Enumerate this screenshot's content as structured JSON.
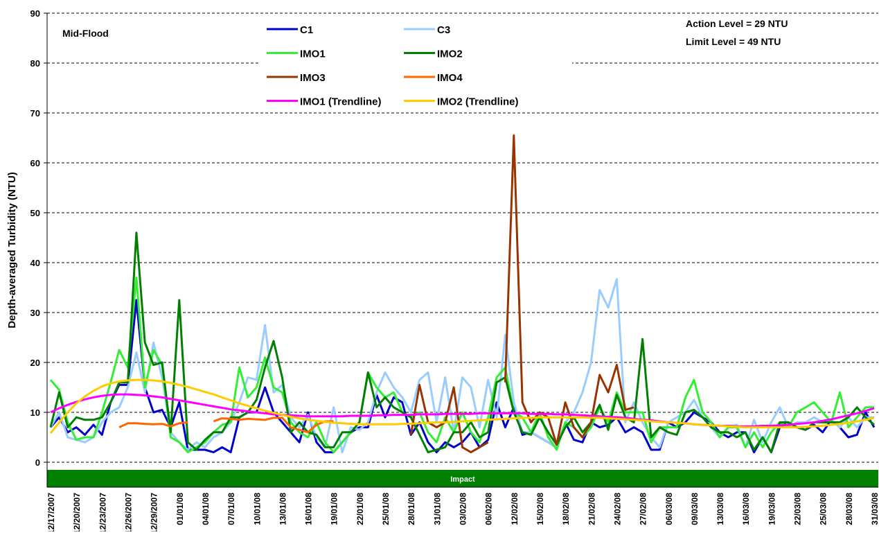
{
  "chart_data": {
    "type": "line",
    "y_label": "Depth-averaged Turbidity (NTU)",
    "annotations": {
      "site": "Mid-Flood",
      "action_level": "Action Level = 29 NTU",
      "limit_level": "Limit Level = 49 NTU",
      "impact": "Impact"
    },
    "categories": [
      "12/17/2007",
      null,
      null,
      "12/20/2007",
      null,
      null,
      "12/23/2007",
      null,
      null,
      "12/26/2007",
      null,
      null,
      "12/29/2007",
      null,
      null,
      "01/01/08",
      null,
      null,
      "04/01/08",
      null,
      null,
      "07/01/08",
      null,
      null,
      "10/01/08",
      null,
      null,
      "13/01/08",
      null,
      null,
      "16/01/08",
      null,
      null,
      "19/01/08",
      null,
      null,
      "22/01/08",
      null,
      null,
      "25/01/08",
      null,
      null,
      "28/01/08",
      null,
      null,
      "31/01/08",
      null,
      null,
      "03/02/08",
      null,
      null,
      "06/02/08",
      null,
      null,
      "12/02/08",
      null,
      null,
      "15/02/08",
      null,
      null,
      "18/02/08",
      null,
      null,
      "21/02/08",
      null,
      null,
      "24/02/08",
      null,
      null,
      "27/02/08",
      null,
      null,
      "06/03/08",
      null,
      null,
      "09/03/08",
      null,
      null,
      "13/03/08",
      null,
      null,
      "16/03/08",
      null,
      null,
      "19/03/08",
      null,
      null,
      "22/03/08",
      null,
      null,
      "25/03/08",
      null,
      null,
      "28/03/08",
      null,
      null,
      "31/03/08"
    ],
    "ylim": [
      -5,
      90
    ],
    "yticks": [
      0,
      10,
      20,
      30,
      40,
      50,
      60,
      70,
      80,
      90
    ],
    "grid": true,
    "series": [
      {
        "name": "C1",
        "color": "#0000cc",
        "values": [
          7,
          9,
          6,
          7,
          5.5,
          7.5,
          5.5,
          12,
          15.5,
          15.5,
          32.5,
          15,
          10,
          10.5,
          7,
          12,
          2.5,
          2.5,
          2.5,
          2,
          3,
          2,
          9,
          10,
          10,
          15,
          10,
          8,
          6,
          4,
          10,
          4,
          2,
          2,
          4,
          6,
          7,
          7,
          13.5,
          9,
          13,
          12,
          5.5,
          8,
          4,
          2,
          4,
          3,
          4,
          6,
          3,
          4.5,
          12,
          7,
          11,
          5.5,
          6,
          5,
          4,
          3,
          8,
          4.5,
          4,
          8,
          7,
          7.5,
          9,
          6,
          7,
          6,
          2.5,
          2.5,
          8,
          7,
          8,
          10,
          9,
          8,
          6,
          5,
          6,
          6,
          2,
          5,
          2,
          7,
          8,
          7,
          6.5,
          7.5,
          6,
          8.5,
          7,
          5,
          5.5,
          10,
          7
        ]
      },
      {
        "name": "C3",
        "color": "#99ccff",
        "values": [
          7,
          10,
          5,
          4.5,
          4,
          5,
          8,
          10,
          11,
          15,
          22,
          14,
          24,
          17,
          6,
          4,
          2.5,
          4,
          3,
          5,
          6,
          8,
          12,
          17,
          16.5,
          27.5,
          14,
          15.5,
          9,
          7,
          9.5,
          5,
          3,
          11,
          2,
          7,
          6.5,
          8,
          14,
          18,
          15,
          13,
          10,
          16.5,
          18,
          8,
          17,
          6,
          17,
          15,
          7,
          16.5,
          9,
          25.5,
          12,
          6,
          6,
          5,
          4,
          3,
          8,
          10,
          14,
          20,
          34.5,
          31,
          36.7,
          8,
          12,
          8,
          5,
          3,
          8,
          9,
          10,
          12.5,
          9,
          7,
          5,
          7,
          7.5,
          3,
          8.5,
          4,
          8,
          11,
          7,
          8,
          8,
          9,
          8,
          8.5,
          7,
          9,
          7,
          9,
          9
        ]
      },
      {
        "name": "IMO1",
        "color": "#33ee33",
        "values": [
          16.5,
          14.5,
          8,
          4.5,
          5,
          5,
          10,
          16,
          22.5,
          19,
          37,
          15,
          22.5,
          19.5,
          5,
          4,
          2,
          3,
          4,
          6,
          7.5,
          8,
          19,
          13,
          15,
          21,
          15,
          14,
          8,
          6,
          5,
          8,
          4,
          2,
          4,
          6,
          8,
          18,
          15,
          13,
          14,
          10,
          9,
          10,
          6,
          4,
          9,
          6,
          10,
          6,
          4,
          9,
          17,
          19,
          10,
          9,
          6,
          10,
          5,
          2.5,
          8,
          7,
          5,
          7,
          11,
          8,
          14,
          10,
          10,
          10,
          4,
          7,
          7,
          7,
          13,
          16.5,
          10,
          8,
          5,
          7,
          7,
          3,
          6,
          3,
          6,
          8,
          7,
          10,
          11,
          12,
          10,
          8,
          14,
          7,
          9,
          11,
          11
        ]
      },
      {
        "name": "IMO2",
        "color": "#008000",
        "values": [
          7,
          14,
          7,
          9,
          8.5,
          8.5,
          9,
          12,
          16,
          16,
          46,
          24,
          19.5,
          20,
          6,
          32.5,
          4,
          2.5,
          4.5,
          6,
          6,
          9,
          9,
          10,
          12.5,
          19,
          24.3,
          17,
          6,
          8,
          6,
          5.5,
          3,
          3,
          6,
          6,
          8,
          18,
          11,
          13,
          11,
          10,
          9,
          5.5,
          2,
          2.5,
          3,
          6,
          6,
          8,
          5,
          6,
          16,
          17,
          10,
          6,
          5.5,
          9,
          6,
          3.5,
          7,
          9,
          6,
          8,
          11.5,
          6.5,
          13.5,
          9,
          8,
          24.7,
          5,
          7,
          6,
          5.5,
          10,
          10.5,
          9,
          7,
          6,
          6,
          5,
          6,
          2.5,
          5,
          2,
          8,
          8,
          7,
          6.5,
          8,
          8,
          8,
          8,
          9,
          11,
          9,
          7.5
        ]
      },
      {
        "name": "IMO3",
        "color": "#993300",
        "values": [
          null,
          null,
          null,
          null,
          null,
          null,
          null,
          null,
          null,
          null,
          null,
          null,
          null,
          null,
          null,
          null,
          null,
          null,
          null,
          null,
          null,
          null,
          null,
          null,
          null,
          null,
          null,
          null,
          null,
          null,
          null,
          null,
          null,
          null,
          null,
          null,
          null,
          null,
          null,
          null,
          null,
          null,
          5.5,
          15.5,
          8,
          7,
          8,
          15,
          3,
          2,
          3,
          4,
          null,
          16,
          65.5,
          12,
          8,
          10,
          9,
          3.5,
          12,
          7,
          5,
          8,
          17.5,
          14,
          19.5,
          10.5,
          11,
          null,
          null,
          null,
          null,
          null,
          null,
          null,
          null,
          null,
          null,
          null,
          null,
          null,
          null,
          null,
          null,
          null,
          null,
          null,
          null,
          null,
          null,
          null,
          null,
          null,
          null,
          null,
          null
        ]
      },
      {
        "name": "IMO4",
        "color": "#ff6600",
        "values": [
          null,
          null,
          null,
          null,
          null,
          null,
          null,
          null,
          7,
          7.8,
          7.8,
          7.7,
          7.6,
          7.7,
          7.2,
          7.8,
          8,
          null,
          null,
          8.2,
          8.8,
          8.7,
          8.5,
          8.7,
          8.6,
          8.5,
          8.9,
          8.9,
          7,
          6.5,
          6,
          7.5,
          8.2,
          8.2,
          null,
          null,
          null,
          null,
          null,
          null,
          null,
          null,
          null,
          null,
          null,
          null,
          null,
          null,
          null,
          null,
          null,
          null,
          null,
          null,
          null,
          null,
          null,
          null,
          null,
          null,
          null,
          null,
          null,
          null,
          null,
          null,
          null,
          null,
          null,
          null,
          null,
          null,
          null,
          null,
          null,
          null,
          null,
          null,
          null,
          null,
          null,
          null,
          null,
          null,
          null,
          null,
          null,
          null,
          null,
          null,
          null,
          null,
          null,
          null,
          null,
          null,
          null
        ]
      },
      {
        "name": "IMO1 (Trendline)",
        "color": "#ff00ff",
        "values": [
          10,
          10.8,
          11.5,
          12.1,
          12.6,
          13,
          13.3,
          13.5,
          13.6,
          13.6,
          13.5,
          13.4,
          13.2,
          13,
          12.7,
          12.4,
          12.1,
          11.8,
          11.5,
          11.2,
          10.9,
          10.6,
          10.4,
          10.2,
          10,
          9.8,
          9.6,
          9.5,
          9.4,
          9.3,
          9.2,
          9.2,
          9.2,
          9.2,
          9.2,
          9.3,
          9.3,
          9.3,
          9.4,
          9.4,
          9.5,
          9.5,
          9.5,
          9.6,
          9.6,
          9.6,
          9.7,
          9.7,
          9.7,
          9.7,
          9.8,
          9.8,
          9.8,
          9.8,
          9.8,
          9.8,
          9.7,
          9.7,
          9.7,
          9.6,
          9.6,
          9.5,
          9.4,
          9.3,
          9.2,
          9.1,
          9,
          8.9,
          8.7,
          8.5,
          8.4,
          8.2,
          8,
          7.9,
          7.8,
          7.6,
          7.5,
          7.4,
          7.3,
          7.3,
          7.2,
          7.2,
          7.2,
          7.3,
          7.3,
          7.4,
          7.5,
          7.7,
          7.8,
          8,
          8.3,
          8.6,
          9,
          9.4,
          9.8,
          10.3,
          10.8
        ]
      },
      {
        "name": "IMO2 (Trendline)",
        "color": "#ffcc00",
        "values": [
          5.8,
          8,
          10,
          11.8,
          13.2,
          14.3,
          15.2,
          15.8,
          16.2,
          16.4,
          16.5,
          16.5,
          16.4,
          16.2,
          15.9,
          15.5,
          15.1,
          14.6,
          14.1,
          13.6,
          13,
          12.4,
          11.8,
          11.3,
          10.8,
          10.3,
          9.9,
          9.5,
          9.1,
          8.8,
          8.5,
          8.3,
          8.1,
          7.9,
          7.8,
          7.7,
          7.6,
          7.6,
          7.6,
          7.6,
          7.6,
          7.7,
          7.7,
          7.8,
          7.9,
          8,
          8,
          8.1,
          8.2,
          8.3,
          8.4,
          8.5,
          8.6,
          8.7,
          8.8,
          8.9,
          8.9,
          9,
          9,
          9,
          9,
          9,
          9,
          8.9,
          8.9,
          8.8,
          8.7,
          8.6,
          8.5,
          8.4,
          8.2,
          8.1,
          8,
          7.9,
          7.8,
          7.6,
          7.5,
          7.4,
          7.3,
          7.2,
          7.1,
          7,
          7,
          7,
          7,
          7,
          7,
          7,
          7.1,
          7.2,
          7.3,
          7.5,
          7.7,
          7.9,
          8.2,
          8.5,
          8.9
        ]
      }
    ]
  }
}
